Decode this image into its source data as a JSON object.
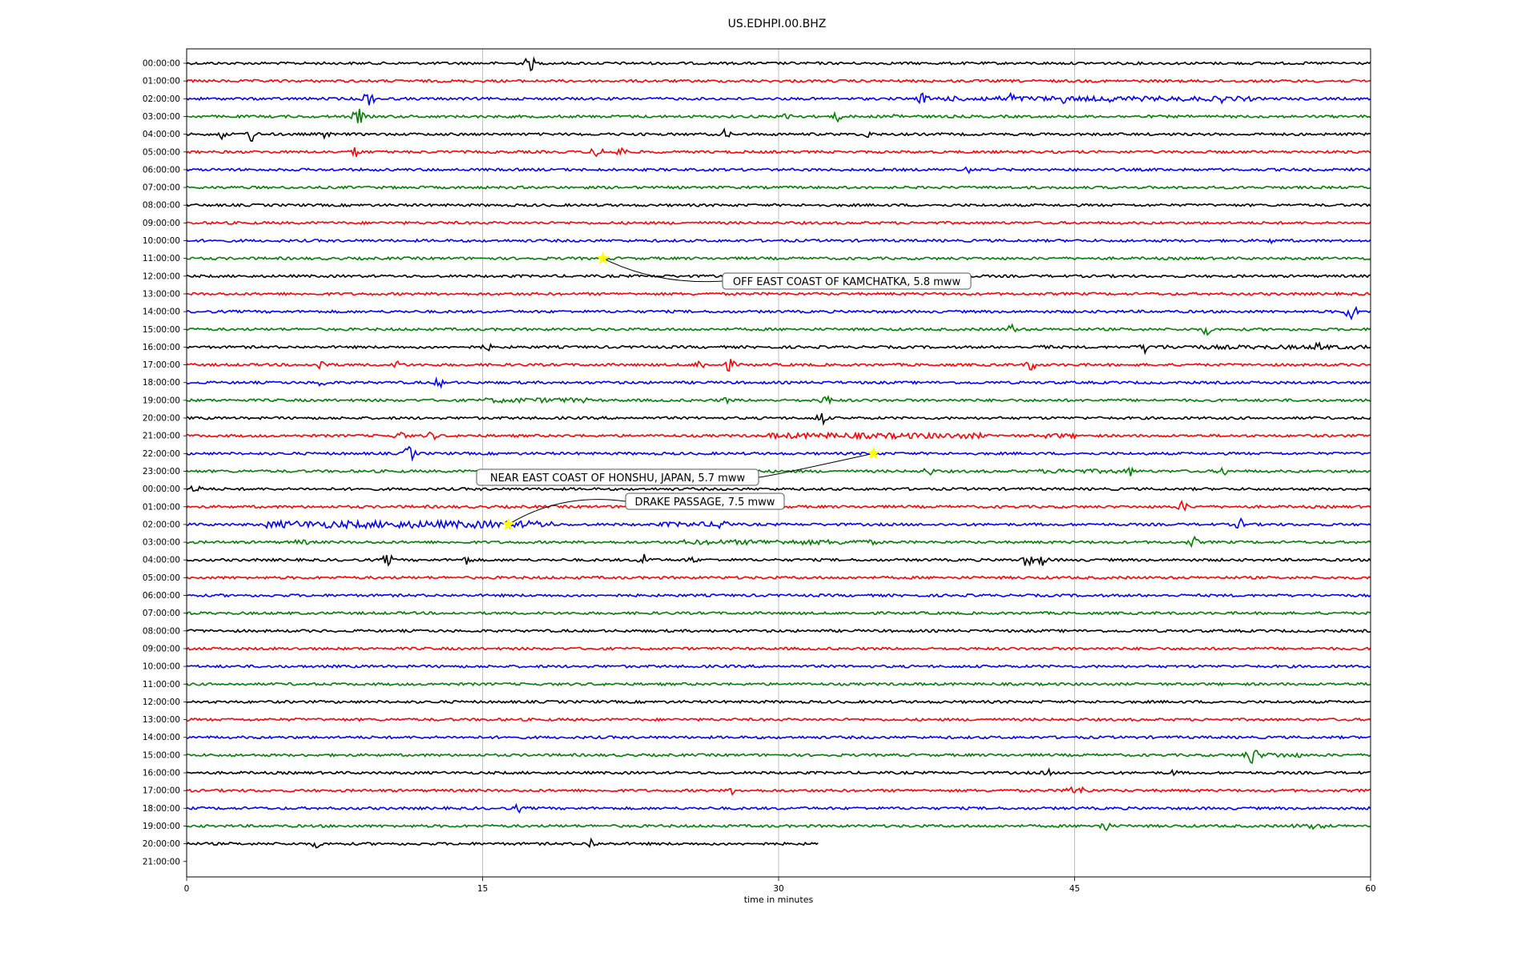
{
  "chart_data": {
    "type": "line",
    "title": "US.EDHPI.00.BHZ",
    "xlabel": "time in minutes",
    "ylabel": "",
    "xlim": [
      0,
      60
    ],
    "x_ticks": [
      "0",
      "15",
      "30",
      "45",
      "60"
    ],
    "grid": "vertical lines at 15, 30, 45",
    "legend": "none",
    "row_labels": [
      "00:00:00",
      "01:00:00",
      "02:00:00",
      "03:00:00",
      "04:00:00",
      "05:00:00",
      "06:00:00",
      "07:00:00",
      "08:00:00",
      "09:00:00",
      "10:00:00",
      "11:00:00",
      "12:00:00",
      "13:00:00",
      "14:00:00",
      "15:00:00",
      "16:00:00",
      "17:00:00",
      "18:00:00",
      "19:00:00",
      "20:00:00",
      "21:00:00",
      "22:00:00",
      "23:00:00",
      "00:00:00",
      "01:00:00",
      "02:00:00",
      "03:00:00",
      "04:00:00",
      "05:00:00",
      "06:00:00",
      "07:00:00",
      "08:00:00",
      "09:00:00",
      "10:00:00",
      "11:00:00",
      "12:00:00",
      "13:00:00",
      "14:00:00",
      "15:00:00",
      "16:00:00",
      "17:00:00",
      "18:00:00",
      "19:00:00",
      "20:00:00",
      "21:00:00"
    ],
    "trace_colors": [
      "#000000",
      "#ff0000",
      "#0000ff",
      "#008000"
    ],
    "last_trace_end_minutes": 32,
    "events": [
      {
        "name": "OFF EAST COAST OF KAMCHATKA, 5.8 mww",
        "row": 11,
        "minute": 21.1
      },
      {
        "name": "NEAR EAST COAST OF HONSHU, JAPAN, 5.7 mww",
        "row": 22,
        "minute": 34.8
      },
      {
        "name": "DRAKE PASSAGE, 7.5 mww",
        "row": 26,
        "minute": 16.3
      }
    ],
    "bursts": [
      {
        "row": 0,
        "minute": 17.4,
        "amp": 11
      },
      {
        "row": 2,
        "minute": 9.2,
        "amp": 12
      },
      {
        "row": 2,
        "minute": 37.3,
        "amp": 8
      },
      {
        "row": 2,
        "minute": 41.8,
        "amp": 9
      },
      {
        "row": 2,
        "minute": 44.5,
        "amp": 7
      },
      {
        "row": 2,
        "minute": 47,
        "amp": 8
      },
      {
        "row": 2,
        "minute": 52.5,
        "amp": 6
      },
      {
        "row": 3,
        "minute": 8.7,
        "amp": 12
      },
      {
        "row": 3,
        "minute": 30.5,
        "amp": 7
      },
      {
        "row": 3,
        "minute": 33,
        "amp": 7
      },
      {
        "row": 3,
        "minute": 36,
        "amp": 6
      },
      {
        "row": 4,
        "minute": 1.8,
        "amp": 7
      },
      {
        "row": 4,
        "minute": 3.3,
        "amp": 11
      },
      {
        "row": 4,
        "minute": 7,
        "amp": 6
      },
      {
        "row": 4,
        "minute": 27.3,
        "amp": 7
      },
      {
        "row": 4,
        "minute": 34.5,
        "amp": 6
      },
      {
        "row": 5,
        "minute": 8.6,
        "amp": 8
      },
      {
        "row": 5,
        "minute": 20.8,
        "amp": 10
      },
      {
        "row": 5,
        "minute": 22,
        "amp": 9
      },
      {
        "row": 6,
        "minute": 39.6,
        "amp": 5
      },
      {
        "row": 10,
        "minute": 55,
        "amp": 4
      },
      {
        "row": 14,
        "minute": 59,
        "amp": 14
      },
      {
        "row": 15,
        "minute": 41.8,
        "amp": 8
      },
      {
        "row": 15,
        "minute": 51.7,
        "amp": 8
      },
      {
        "row": 16,
        "minute": 15.2,
        "amp": 6
      },
      {
        "row": 16,
        "minute": 43.5,
        "amp": 6
      },
      {
        "row": 16,
        "minute": 48.6,
        "amp": 8
      },
      {
        "row": 16,
        "minute": 57.4,
        "amp": 8
      },
      {
        "row": 17,
        "minute": 6.9,
        "amp": 10
      },
      {
        "row": 17,
        "minute": 10.8,
        "amp": 8
      },
      {
        "row": 17,
        "minute": 26,
        "amp": 8
      },
      {
        "row": 17,
        "minute": 27.5,
        "amp": 9
      },
      {
        "row": 17,
        "minute": 42.8,
        "amp": 8
      },
      {
        "row": 18,
        "minute": 6.8,
        "amp": 7
      },
      {
        "row": 18,
        "minute": 12.8,
        "amp": 7
      },
      {
        "row": 19,
        "minute": 27.3,
        "amp": 5
      },
      {
        "row": 19,
        "minute": 32.4,
        "amp": 8
      },
      {
        "row": 20,
        "minute": 32.2,
        "amp": 10
      },
      {
        "row": 21,
        "minute": 10.8,
        "amp": 8
      },
      {
        "row": 21,
        "minute": 12.4,
        "amp": 7
      },
      {
        "row": 22,
        "minute": 11.3,
        "amp": 12
      },
      {
        "row": 23,
        "minute": 37.6,
        "amp": 7
      },
      {
        "row": 23,
        "minute": 44.5,
        "amp": 7
      },
      {
        "row": 23,
        "minute": 47.8,
        "amp": 7
      },
      {
        "row": 23,
        "minute": 52.5,
        "amp": 7
      },
      {
        "row": 24,
        "minute": 0.5,
        "amp": 8
      },
      {
        "row": 25,
        "minute": 50.5,
        "amp": 8
      },
      {
        "row": 26,
        "minute": 27.2,
        "amp": 11
      },
      {
        "row": 26,
        "minute": 53.4,
        "amp": 8
      },
      {
        "row": 27,
        "minute": 51,
        "amp": 8
      },
      {
        "row": 28,
        "minute": 10.2,
        "amp": 9
      },
      {
        "row": 28,
        "minute": 14.2,
        "amp": 7
      },
      {
        "row": 28,
        "minute": 23.2,
        "amp": 11
      },
      {
        "row": 28,
        "minute": 25.6,
        "amp": 6
      },
      {
        "row": 28,
        "minute": 42.6,
        "amp": 10
      },
      {
        "row": 28,
        "minute": 43.4,
        "amp": 8
      },
      {
        "row": 39,
        "minute": 54,
        "amp": 14
      },
      {
        "row": 40,
        "minute": 43.6,
        "amp": 6
      },
      {
        "row": 40,
        "minute": 50,
        "amp": 5
      },
      {
        "row": 41,
        "minute": 27.7,
        "amp": 6
      },
      {
        "row": 41,
        "minute": 44.8,
        "amp": 8
      },
      {
        "row": 41,
        "minute": 45.5,
        "amp": 7
      },
      {
        "row": 42,
        "minute": 16.8,
        "amp": 6
      },
      {
        "row": 43,
        "minute": 46.5,
        "amp": 9
      },
      {
        "row": 43,
        "minute": 57,
        "amp": 5
      },
      {
        "row": 44,
        "minute": 6.6,
        "amp": 6
      },
      {
        "row": 44,
        "minute": 20.5,
        "amp": 8
      }
    ],
    "noisy_segments": [
      {
        "row": 2,
        "start": 37,
        "end": 54,
        "amp": 3
      },
      {
        "row": 16,
        "start": 48,
        "end": 60,
        "amp": 2.5
      },
      {
        "row": 19,
        "start": 15,
        "end": 20.5,
        "amp": 3
      },
      {
        "row": 21,
        "start": 29.5,
        "end": 40.5,
        "amp": 3.5
      },
      {
        "row": 21,
        "start": 43.5,
        "end": 45,
        "amp": 3
      },
      {
        "row": 23,
        "start": 43,
        "end": 48,
        "amp": 2.5
      },
      {
        "row": 26,
        "start": 4,
        "end": 18.5,
        "amp": 4.5
      },
      {
        "row": 26,
        "start": 24,
        "end": 27.5,
        "amp": 3
      },
      {
        "row": 27,
        "start": 5.3,
        "end": 6.3,
        "amp": 3
      },
      {
        "row": 27,
        "start": 25,
        "end": 35,
        "amp": 3
      },
      {
        "row": 39,
        "start": 53.5,
        "end": 56.5,
        "amp": 3
      },
      {
        "row": 43,
        "start": 56,
        "end": 58,
        "amp": 2.5
      }
    ]
  }
}
